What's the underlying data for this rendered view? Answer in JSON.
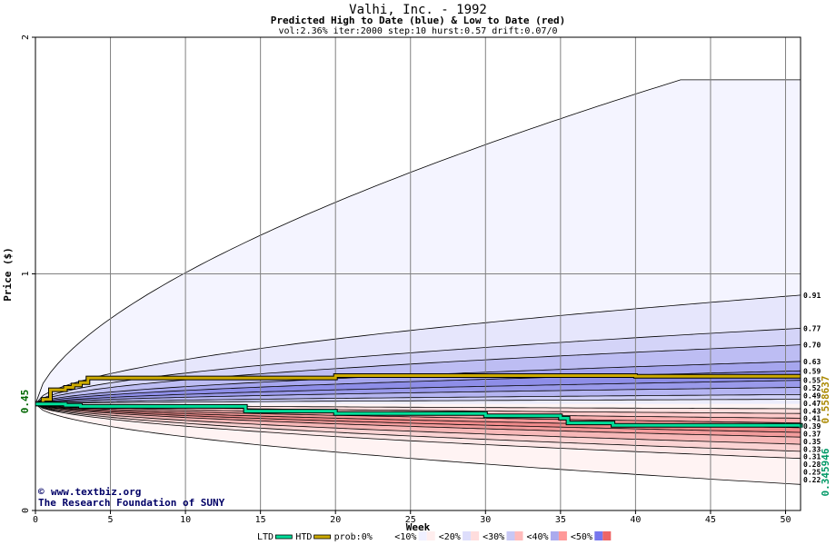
{
  "chart_data": {
    "type": "area",
    "title": "Valhi, Inc. - 1992",
    "subtitle": "Predicted High to Date (blue) &  Low to Date (red)",
    "params": "vol:2.36% iter:2000 step:10 hurst:0.57 drift:0.07/0",
    "xlabel": "Week",
    "ylabel": "Price ($)",
    "xlim": [
      0,
      51
    ],
    "ylim": [
      0,
      2
    ],
    "x_ticks": [
      0,
      5,
      10,
      15,
      20,
      25,
      30,
      35,
      40,
      45,
      50
    ],
    "x_tick_labels": [
      "0",
      "5",
      "10",
      "15",
      "20",
      "25",
      "30",
      "35",
      "40",
      "45",
      "50"
    ],
    "y_ticks": [
      0,
      1,
      2
    ],
    "y_tick_labels": [
      "0",
      "1",
      "2"
    ],
    "start_price": 0.45,
    "start_price_label": "0.45",
    "grid": true,
    "high_bands_end": [
      1.82,
      0.91,
      0.77,
      0.7,
      0.63,
      0.59,
      0.55,
      0.52,
      0.49,
      0.47
    ],
    "low_bands_end": [
      0.43,
      0.41,
      0.39,
      0.37,
      0.35,
      0.33,
      0.31,
      0.28,
      0.25,
      0.22,
      0.11
    ],
    "level_labels": [
      "0.91",
      "0.77",
      "0.70",
      "0.63",
      "0.59",
      "0.55",
      "0.52",
      "0.49",
      "0.47",
      "0.43",
      "0.41",
      "0.39",
      "0.37",
      "0.35",
      "0.33",
      "0.31",
      "0.28",
      "0.25",
      "0.22"
    ],
    "series": [
      {
        "name": "HTD",
        "color": "#ccaa00",
        "x": [
          0,
          0.5,
          1,
          1.5,
          2,
          2.5,
          3,
          3.5,
          4,
          5,
          10,
          20,
          30,
          40,
          51
        ],
        "values": [
          0.45,
          0.47,
          0.51,
          0.51,
          0.52,
          0.53,
          0.54,
          0.56,
          0.56,
          0.56,
          0.56,
          0.57,
          0.57,
          0.567,
          0.567
        ]
      },
      {
        "name": "LTD",
        "color": "#00dd99",
        "x": [
          0,
          2,
          3,
          5,
          13,
          14,
          20,
          30,
          35,
          35.5,
          38,
          38.5,
          51
        ],
        "values": [
          0.45,
          0.445,
          0.44,
          0.44,
          0.44,
          0.42,
          0.41,
          0.4,
          0.39,
          0.37,
          0.37,
          0.36,
          0.35
        ]
      }
    ],
    "end_value_labels": [
      {
        "text": "0.558637",
        "color": "#aa8800"
      },
      {
        "text": "0.345946",
        "color": "#009966"
      }
    ]
  },
  "credits": {
    "copyright_symbol": "©",
    "site": "www.textbiz.org",
    "org": "The Research Foundation of SUNY"
  },
  "legend": {
    "items": [
      {
        "label": "LTD",
        "color": "#00dd99"
      },
      {
        "label": "HTD",
        "color": "#ccaa00"
      },
      {
        "label": "prob:0%",
        "color": "#ffffff"
      },
      {
        "label": "<10%",
        "color": "#f0f0ff"
      },
      {
        "label": "<20%",
        "color": "#ddddfb"
      },
      {
        "label": "<30%",
        "color": "#c8c8f5"
      },
      {
        "label": "<40%",
        "color": "#aaaaee"
      },
      {
        "label": "<50%",
        "color": "#7777ee"
      }
    ],
    "red_swatches": [
      "#ffeeee",
      "#ffdddd",
      "#ffbbbb",
      "#ff9999",
      "#ee6666"
    ]
  }
}
